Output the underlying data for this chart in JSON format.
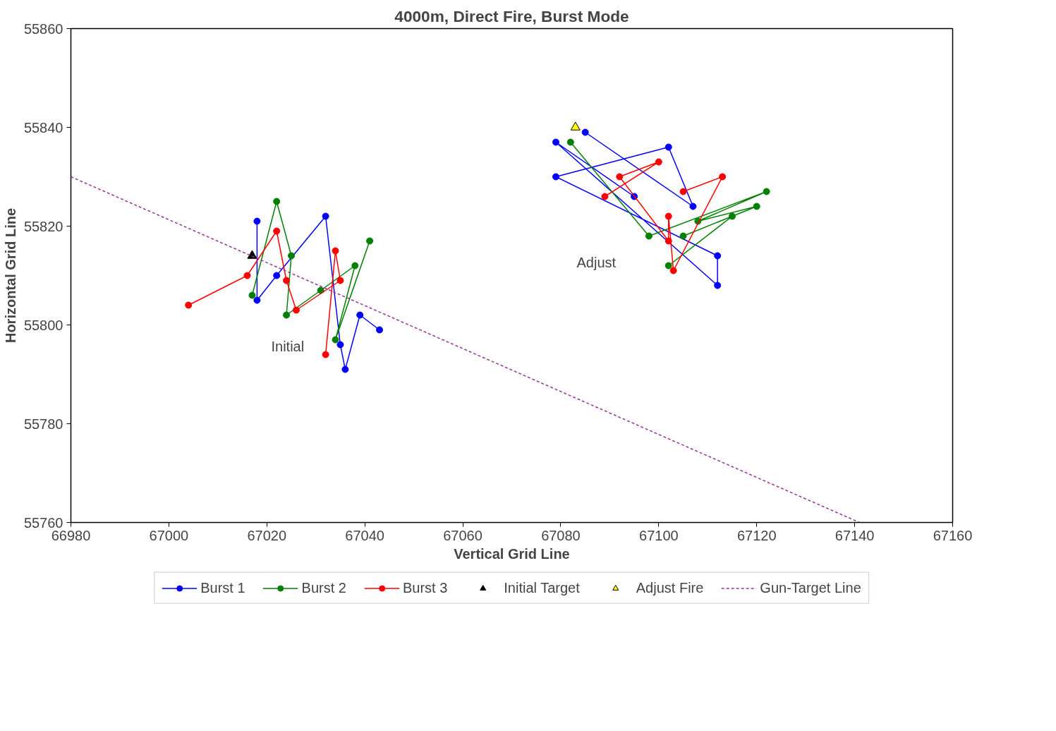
{
  "chart_data": {
    "type": "line",
    "title": "4000m, Direct Fire, Burst Mode",
    "xlabel": "Vertical Grid Line",
    "ylabel": "Horizontal Grid Line",
    "xlim": [
      66980,
      67160
    ],
    "ylim": [
      55760,
      55860
    ],
    "xticks": [
      66980,
      67000,
      67020,
      67040,
      67060,
      67080,
      67100,
      67120,
      67140,
      67160
    ],
    "yticks": [
      55760,
      55780,
      55800,
      55820,
      55840,
      55860
    ],
    "grid": false,
    "legend": "bottom",
    "annotations": [
      "Initial",
      "Adjust"
    ],
    "series": [
      {
        "name": "Burst 1",
        "marker": "circle",
        "line_style": "solid",
        "color": "#0000ff",
        "x": [
          67018,
          67018,
          67022,
          67032,
          67035,
          67036,
          67039,
          67043,
          null,
          67085,
          67107,
          67102,
          67079,
          67112,
          67112,
          67079,
          67095
        ],
        "values": [
          55821,
          55805,
          55810,
          55822,
          55796,
          55791,
          55802,
          55799,
          null,
          55839,
          55824,
          55836,
          55830,
          55814,
          55808,
          55837,
          55826
        ]
      },
      {
        "name": "Burst 2",
        "marker": "circle",
        "line_style": "solid",
        "color": "#008000",
        "x": [
          67017,
          67022,
          67025,
          67024,
          67031,
          67038,
          67034,
          67041,
          null,
          67082,
          67098,
          67122,
          67108,
          67120,
          67105,
          67115,
          67102
        ],
        "values": [
          55806,
          55825,
          55814,
          55802,
          55807,
          55812,
          55797,
          55817,
          null,
          55837,
          55818,
          55827,
          55821,
          55824,
          55818,
          55822,
          55812
        ]
      },
      {
        "name": "Burst 3",
        "marker": "circle",
        "line_style": "solid",
        "color": "#ff0000",
        "x": [
          67004,
          67016,
          67022,
          67024,
          67026,
          67035,
          67034,
          67032,
          null,
          67089,
          67100,
          67092,
          67102,
          67102,
          67103,
          67113,
          67105
        ],
        "values": [
          55804,
          55810,
          55819,
          55809,
          55803,
          55809,
          55815,
          55794,
          null,
          55826,
          55833,
          55830,
          55817,
          55822,
          55811,
          55830,
          55827
        ]
      },
      {
        "name": "Initial Target",
        "type": "scatter",
        "marker": "triangle",
        "color": "#000000",
        "x": [
          67017
        ],
        "values": [
          55814
        ]
      },
      {
        "name": "Adjust Fire",
        "type": "scatter",
        "marker": "triangle",
        "color": "#ffff00",
        "x": [
          67083
        ],
        "values": [
          55840
        ]
      },
      {
        "name": "Gun-Target Line",
        "marker": "none",
        "line_style": "dashed",
        "color": "#993399",
        "x": [
          66980,
          67141
        ],
        "values": [
          55830,
          55760
        ]
      }
    ]
  }
}
